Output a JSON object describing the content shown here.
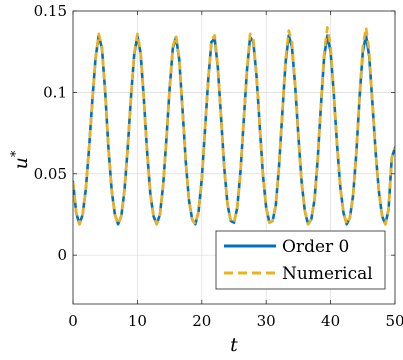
{
  "chart_data": {
    "type": "line",
    "title": "",
    "xlabel": "t",
    "ylabel": "u",
    "ylabel_superscript": "*",
    "xlim": [
      0,
      50
    ],
    "ylim": [
      -0.03,
      0.15
    ],
    "xticks": [
      0,
      10,
      20,
      30,
      40,
      50
    ],
    "xtick_labels": [
      "0",
      "10",
      "20",
      "30",
      "40",
      "50"
    ],
    "yticks": [
      0,
      0.05,
      0.1,
      0.15
    ],
    "ytick_labels": [
      "0",
      "0.05",
      "0.1",
      "0.15"
    ],
    "grid": true,
    "legend_position": "bottom-right",
    "series": [
      {
        "name": "Order 0",
        "color": "#0072BD",
        "style": "solid",
        "x": [
          0,
          0.5,
          1.0,
          1.5,
          2.0,
          2.5,
          3.0,
          3.5,
          4.0,
          4.5,
          5.0,
          5.5,
          6.0,
          6.5,
          7.0,
          7.5,
          8.0,
          8.5,
          9.0,
          9.5,
          10.0,
          10.5,
          11.0,
          11.5,
          12.0,
          12.5,
          13.0,
          13.5,
          14.0,
          14.5,
          15.0,
          15.5,
          16.0,
          16.5,
          17.0,
          17.5,
          18.0,
          18.5,
          19.0,
          19.5,
          20.0,
          20.5,
          21.0,
          21.5,
          22.0,
          22.5,
          23.0,
          23.5,
          24.0,
          24.5,
          25.0,
          25.5,
          26.0,
          26.5,
          27.0,
          27.5,
          28.0,
          28.5,
          29.0,
          29.5,
          30.0,
          30.5,
          31.0,
          31.5,
          32.0,
          32.5,
          33.0,
          33.5,
          34.0,
          34.5,
          35.0,
          35.5,
          36.0,
          36.5,
          37.0,
          37.5,
          38.0,
          38.5,
          39.0,
          39.5,
          40.0,
          40.5,
          41.0,
          41.5,
          42.0,
          42.5,
          43.0,
          43.5,
          44.0,
          44.5,
          45.0,
          45.5,
          46.0,
          46.5,
          47.0,
          47.5,
          48.0,
          48.5,
          49.0,
          49.5,
          50.0
        ],
        "y": [
          0.045,
          0.026,
          0.019,
          0.025,
          0.041,
          0.066,
          0.095,
          0.121,
          0.135,
          0.127,
          0.1,
          0.066,
          0.04,
          0.025,
          0.019,
          0.024,
          0.04,
          0.066,
          0.097,
          0.123,
          0.135,
          0.124,
          0.096,
          0.064,
          0.038,
          0.024,
          0.019,
          0.025,
          0.043,
          0.071,
          0.102,
          0.127,
          0.134,
          0.12,
          0.09,
          0.058,
          0.034,
          0.022,
          0.019,
          0.027,
          0.047,
          0.077,
          0.108,
          0.131,
          0.133,
          0.115,
          0.084,
          0.053,
          0.031,
          0.021,
          0.02,
          0.029,
          0.051,
          0.082,
          0.113,
          0.134,
          0.131,
          0.11,
          0.079,
          0.049,
          0.029,
          0.02,
          0.021,
          0.031,
          0.055,
          0.087,
          0.118,
          0.135,
          0.128,
          0.104,
          0.073,
          0.045,
          0.027,
          0.019,
          0.022,
          0.034,
          0.059,
          0.092,
          0.122,
          0.135,
          0.125,
          0.099,
          0.068,
          0.042,
          0.026,
          0.019,
          0.023,
          0.037,
          0.063,
          0.097,
          0.125,
          0.135,
          0.122,
          0.093,
          0.063,
          0.039,
          0.024,
          0.019,
          0.028,
          0.06,
          0.066
        ]
      },
      {
        "name": "Numerical",
        "color": "#EDB120",
        "style": "dashed",
        "x": [
          0,
          0.5,
          1.0,
          1.5,
          2.0,
          2.5,
          3.0,
          3.5,
          4.0,
          4.5,
          5.0,
          5.5,
          6.0,
          6.5,
          7.0,
          7.5,
          8.0,
          8.5,
          9.0,
          9.5,
          10.0,
          10.5,
          11.0,
          11.5,
          12.0,
          12.5,
          13.0,
          13.5,
          14.0,
          14.5,
          15.0,
          15.5,
          16.0,
          16.5,
          17.0,
          17.5,
          18.0,
          18.5,
          19.0,
          19.5,
          20.0,
          20.5,
          21.0,
          21.5,
          22.0,
          22.5,
          23.0,
          23.5,
          24.0,
          24.5,
          25.0,
          25.5,
          26.0,
          26.5,
          27.0,
          27.5,
          28.0,
          28.5,
          29.0,
          29.5,
          30.0,
          30.5,
          31.0,
          31.5,
          32.0,
          32.5,
          33.0,
          33.5,
          34.0,
          34.5,
          35.0,
          35.5,
          36.0,
          36.5,
          37.0,
          37.5,
          38.0,
          38.5,
          39.0,
          39.5,
          40.0,
          40.5,
          41.0,
          41.5,
          42.0,
          42.5,
          43.0,
          43.5,
          44.0,
          44.5,
          45.0,
          45.5,
          46.0,
          46.5,
          47.0,
          47.5,
          48.0,
          48.5,
          49.0,
          49.5,
          50.0
        ],
        "y": [
          0.045,
          0.026,
          0.019,
          0.025,
          0.041,
          0.066,
          0.095,
          0.121,
          0.136,
          0.128,
          0.1,
          0.066,
          0.04,
          0.025,
          0.019,
          0.024,
          0.04,
          0.066,
          0.097,
          0.124,
          0.136,
          0.125,
          0.096,
          0.064,
          0.038,
          0.024,
          0.019,
          0.025,
          0.043,
          0.071,
          0.102,
          0.128,
          0.135,
          0.121,
          0.09,
          0.058,
          0.034,
          0.022,
          0.019,
          0.027,
          0.047,
          0.077,
          0.108,
          0.132,
          0.135,
          0.116,
          0.084,
          0.053,
          0.031,
          0.021,
          0.02,
          0.029,
          0.051,
          0.082,
          0.114,
          0.136,
          0.133,
          0.111,
          0.079,
          0.049,
          0.029,
          0.02,
          0.021,
          0.031,
          0.055,
          0.088,
          0.12,
          0.138,
          0.131,
          0.105,
          0.073,
          0.045,
          0.027,
          0.019,
          0.022,
          0.034,
          0.059,
          0.093,
          0.124,
          0.14,
          0.128,
          0.1,
          0.068,
          0.042,
          0.026,
          0.019,
          0.023,
          0.037,
          0.063,
          0.098,
          0.128,
          0.14,
          0.125,
          0.094,
          0.063,
          0.039,
          0.024,
          0.019,
          0.028,
          0.06,
          0.066
        ]
      }
    ]
  }
}
